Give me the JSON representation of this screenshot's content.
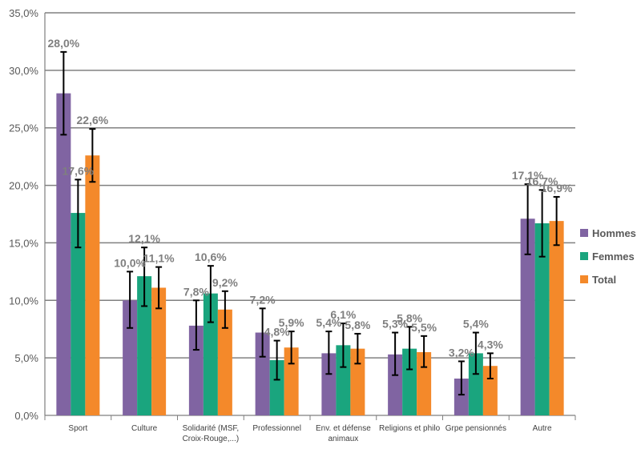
{
  "chart_data": {
    "type": "bar",
    "title": "",
    "xlabel": "",
    "ylabel": "",
    "ylim": [
      0,
      35
    ],
    "yticks": [
      "0,0%",
      "5,0%",
      "10,0%",
      "15,0%",
      "20,0%",
      "25,0%",
      "30,0%",
      "35,0%"
    ],
    "grid": true,
    "legend": "right",
    "error_bars": true,
    "categories": [
      [
        "Sport"
      ],
      [
        "Culture"
      ],
      [
        "Solidarité (MSF,",
        "Croix-Rouge,...)"
      ],
      [
        "Professionnel"
      ],
      [
        "Env. et défense",
        "animaux"
      ],
      [
        "Religions et philo"
      ],
      [
        "Grpe pensionnés"
      ],
      [
        "Autre"
      ]
    ],
    "series": [
      {
        "name": "Hommes",
        "color": "#8064a2",
        "values": [
          28.0,
          10.0,
          7.8,
          7.2,
          5.4,
          5.3,
          3.2,
          17.1
        ],
        "labels": [
          "28,0%",
          "10,0%",
          "7,8%",
          "7,2%",
          "5,4%",
          "5,3%",
          "3,2%",
          "17,1%"
        ],
        "err_low": [
          24.4,
          7.6,
          5.7,
          5.1,
          3.6,
          3.5,
          1.8,
          14.0
        ],
        "err_high": [
          31.6,
          12.5,
          10.0,
          9.3,
          7.3,
          7.2,
          4.7,
          20.1
        ]
      },
      {
        "name": "Femmes",
        "color": "#1aa57e",
        "values": [
          17.6,
          12.1,
          10.6,
          4.8,
          6.1,
          5.8,
          5.4,
          16.7
        ],
        "labels": [
          "17,6%",
          "12,1%",
          "10,6%",
          "4,8%",
          "6,1%",
          "5,8%",
          "5,4%",
          "16,7%"
        ],
        "err_low": [
          14.6,
          9.5,
          8.1,
          3.1,
          4.2,
          4.0,
          3.6,
          13.8
        ],
        "err_high": [
          20.5,
          14.6,
          13.0,
          6.5,
          8.0,
          7.7,
          7.2,
          19.6
        ]
      },
      {
        "name": "Total",
        "color": "#f4892a",
        "values": [
          22.6,
          11.1,
          9.2,
          5.9,
          5.8,
          5.5,
          4.3,
          16.9
        ],
        "labels": [
          "22,6%",
          "11,1%",
          "9,2%",
          "5,9%",
          "5,8%",
          "5,5%",
          "4,3%",
          "16,9%"
        ],
        "err_low": [
          20.3,
          9.3,
          7.6,
          4.5,
          4.5,
          4.2,
          3.2,
          14.8
        ],
        "err_high": [
          24.9,
          12.9,
          10.8,
          7.3,
          7.1,
          6.9,
          5.4,
          19.0
        ]
      }
    ]
  }
}
